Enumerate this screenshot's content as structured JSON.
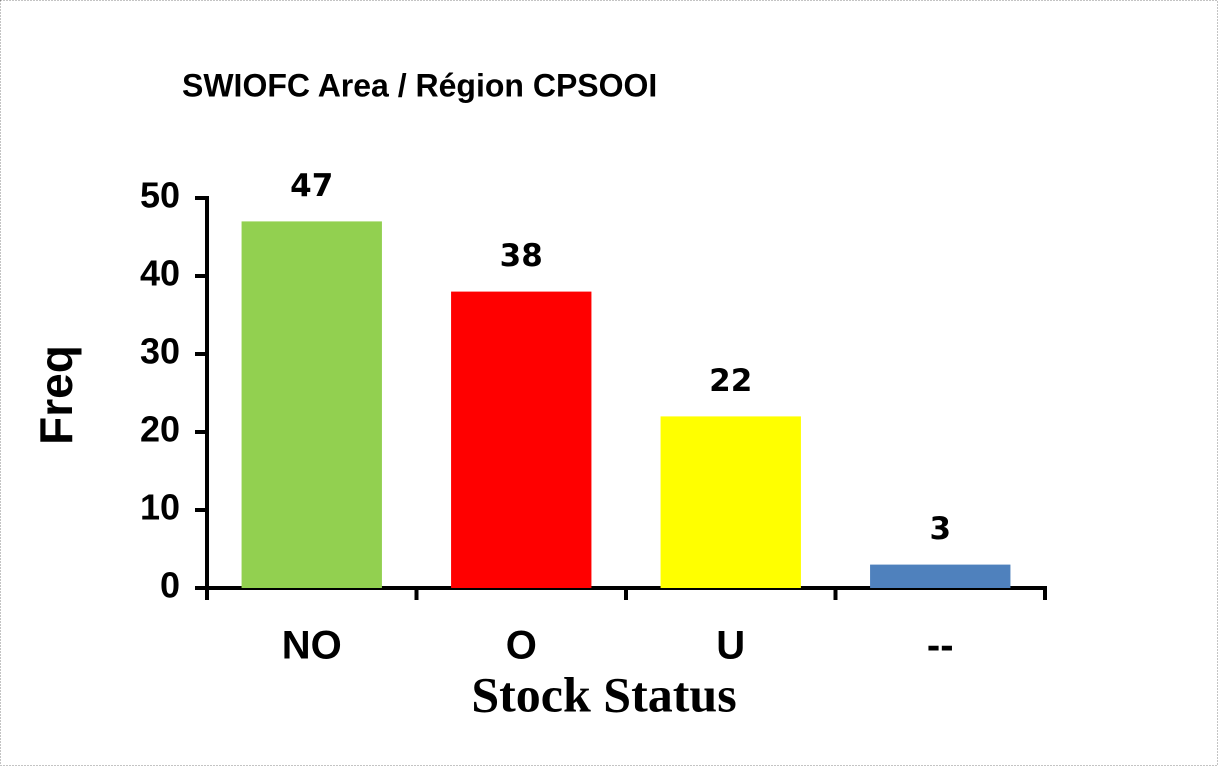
{
  "chart_data": {
    "type": "bar",
    "title": "SWIOFC Area / Région CPSOOI",
    "categories": [
      "NO",
      "O",
      "U",
      "--"
    ],
    "values": [
      47,
      38,
      22,
      3
    ],
    "colors": [
      "#92d050",
      "#ff0000",
      "#ffff00",
      "#4f81bd"
    ],
    "xlabel": "Stock Status",
    "ylabel": "Freq",
    "ylim": [
      0,
      50
    ],
    "yticks": [
      0,
      10,
      20,
      30,
      40,
      50
    ],
    "grid": false
  }
}
